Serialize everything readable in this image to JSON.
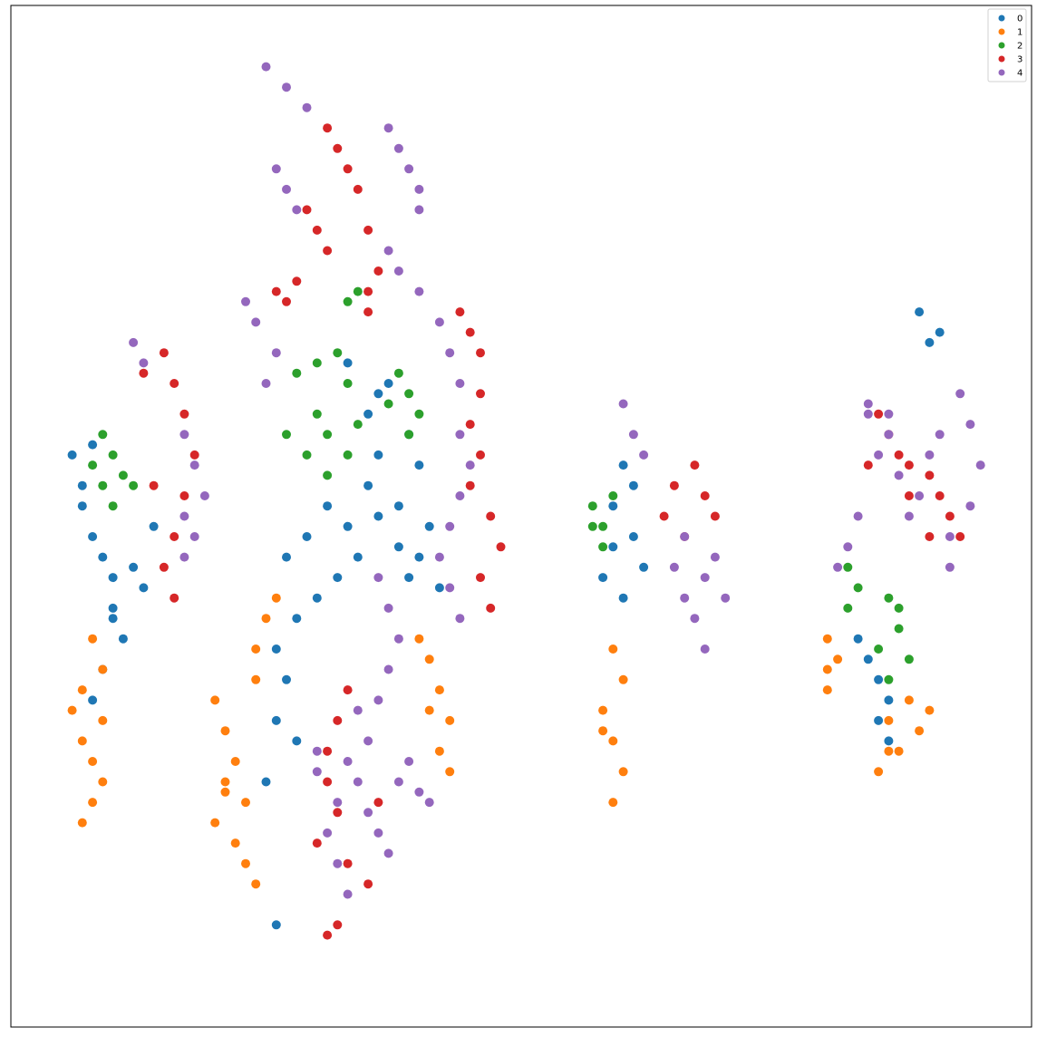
{
  "chart_data": {
    "type": "scatter",
    "title": "",
    "xlabel": "",
    "ylabel": "",
    "axes_visible": false,
    "ticks_visible": false,
    "grid": false,
    "legend_position": "top-right",
    "xlim": [
      0,
      100
    ],
    "ylim": [
      0,
      100
    ],
    "series": [
      {
        "name": "0",
        "color": "#1f77b4",
        "points": [
          [
            6,
            56
          ],
          [
            7,
            51
          ],
          [
            8,
            48
          ],
          [
            9,
            46
          ],
          [
            10,
            44
          ],
          [
            10,
            41
          ],
          [
            11,
            38
          ],
          [
            9,
            35
          ],
          [
            8,
            32
          ],
          [
            12,
            45
          ],
          [
            10,
            40
          ],
          [
            14,
            49
          ],
          [
            13,
            43
          ],
          [
            7,
            53
          ],
          [
            8,
            57
          ],
          [
            27,
            46
          ],
          [
            29,
            48
          ],
          [
            31,
            51
          ],
          [
            33,
            49
          ],
          [
            35,
            53
          ],
          [
            36,
            56
          ],
          [
            35,
            60
          ],
          [
            37,
            63
          ],
          [
            39,
            58
          ],
          [
            40,
            55
          ],
          [
            38,
            51
          ],
          [
            41,
            49
          ],
          [
            40,
            46
          ],
          [
            39,
            44
          ],
          [
            38,
            47
          ],
          [
            36,
            50
          ],
          [
            34,
            46
          ],
          [
            32,
            44
          ],
          [
            30,
            42
          ],
          [
            28,
            40
          ],
          [
            26,
            37
          ],
          [
            27,
            34
          ],
          [
            26,
            30
          ],
          [
            28,
            28
          ],
          [
            25,
            24
          ],
          [
            26,
            10
          ],
          [
            33,
            65
          ],
          [
            36,
            62
          ],
          [
            42,
            43
          ],
          [
            60,
            55
          ],
          [
            59,
            51
          ],
          [
            61,
            48
          ],
          [
            62,
            45
          ],
          [
            60,
            42
          ],
          [
            58,
            44
          ],
          [
            59,
            47
          ],
          [
            61,
            53
          ],
          [
            89,
            70
          ],
          [
            90,
            67
          ],
          [
            91,
            68
          ],
          [
            83,
            38
          ],
          [
            84,
            36
          ],
          [
            85,
            34
          ],
          [
            86,
            32
          ],
          [
            85,
            30
          ],
          [
            86,
            28
          ]
        ]
      },
      {
        "name": "1",
        "color": "#ff7f0e",
        "points": [
          [
            8,
            38
          ],
          [
            9,
            35
          ],
          [
            7,
            33
          ],
          [
            6,
            31
          ],
          [
            7,
            28
          ],
          [
            8,
            26
          ],
          [
            9,
            24
          ],
          [
            8,
            22
          ],
          [
            7,
            20
          ],
          [
            9,
            30
          ],
          [
            20,
            32
          ],
          [
            21,
            29
          ],
          [
            22,
            26
          ],
          [
            21,
            23
          ],
          [
            20,
            20
          ],
          [
            22,
            18
          ],
          [
            23,
            16
          ],
          [
            24,
            14
          ],
          [
            21,
            24
          ],
          [
            23,
            22
          ],
          [
            24,
            37
          ],
          [
            25,
            40
          ],
          [
            26,
            42
          ],
          [
            24,
            34
          ],
          [
            40,
            38
          ],
          [
            41,
            36
          ],
          [
            42,
            33
          ],
          [
            43,
            30
          ],
          [
            42,
            27
          ],
          [
            43,
            25
          ],
          [
            41,
            31
          ],
          [
            59,
            37
          ],
          [
            60,
            34
          ],
          [
            58,
            31
          ],
          [
            59,
            28
          ],
          [
            60,
            25
          ],
          [
            59,
            22
          ],
          [
            58,
            29
          ],
          [
            80,
            38
          ],
          [
            81,
            36
          ],
          [
            80,
            35
          ],
          [
            80,
            33
          ],
          [
            86,
            30
          ],
          [
            88,
            32
          ],
          [
            89,
            29
          ],
          [
            86,
            27
          ],
          [
            85,
            25
          ],
          [
            87,
            27
          ],
          [
            90,
            31
          ]
        ]
      },
      {
        "name": "2",
        "color": "#2ca02c",
        "points": [
          [
            9,
            58
          ],
          [
            10,
            56
          ],
          [
            11,
            54
          ],
          [
            8,
            55
          ],
          [
            9,
            53
          ],
          [
            10,
            51
          ],
          [
            12,
            53
          ],
          [
            28,
            64
          ],
          [
            30,
            65
          ],
          [
            32,
            66
          ],
          [
            33,
            63
          ],
          [
            30,
            60
          ],
          [
            31,
            58
          ],
          [
            29,
            56
          ],
          [
            31,
            54
          ],
          [
            33,
            56
          ],
          [
            34,
            59
          ],
          [
            27,
            58
          ],
          [
            38,
            64
          ],
          [
            39,
            62
          ],
          [
            40,
            60
          ],
          [
            37,
            61
          ],
          [
            39,
            58
          ],
          [
            33,
            71
          ],
          [
            34,
            72
          ],
          [
            57,
            51
          ],
          [
            58,
            49
          ],
          [
            59,
            52
          ],
          [
            58,
            47
          ],
          [
            57,
            49
          ],
          [
            82,
            45
          ],
          [
            83,
            43
          ],
          [
            82,
            41
          ],
          [
            86,
            42
          ],
          [
            87,
            39
          ],
          [
            85,
            37
          ],
          [
            88,
            36
          ],
          [
            86,
            34
          ],
          [
            87,
            41
          ]
        ]
      },
      {
        "name": "3",
        "color": "#d62728",
        "points": [
          [
            13,
            64
          ],
          [
            15,
            66
          ],
          [
            16,
            63
          ],
          [
            17,
            60
          ],
          [
            18,
            56
          ],
          [
            17,
            52
          ],
          [
            16,
            48
          ],
          [
            15,
            45
          ],
          [
            16,
            42
          ],
          [
            14,
            53
          ],
          [
            31,
            88
          ],
          [
            32,
            86
          ],
          [
            33,
            84
          ],
          [
            34,
            82
          ],
          [
            29,
            80
          ],
          [
            30,
            78
          ],
          [
            31,
            76
          ],
          [
            26,
            72
          ],
          [
            27,
            71
          ],
          [
            28,
            73
          ],
          [
            35,
            78
          ],
          [
            36,
            74
          ],
          [
            35,
            72
          ],
          [
            35,
            70
          ],
          [
            44,
            70
          ],
          [
            45,
            68
          ],
          [
            46,
            66
          ],
          [
            46,
            62
          ],
          [
            45,
            59
          ],
          [
            46,
            56
          ],
          [
            45,
            53
          ],
          [
            47,
            50
          ],
          [
            48,
            47
          ],
          [
            46,
            44
          ],
          [
            47,
            41
          ],
          [
            33,
            33
          ],
          [
            32,
            30
          ],
          [
            31,
            27
          ],
          [
            31,
            24
          ],
          [
            32,
            21
          ],
          [
            30,
            18
          ],
          [
            33,
            16
          ],
          [
            32,
            10
          ],
          [
            31,
            9
          ],
          [
            36,
            22
          ],
          [
            35,
            14
          ],
          [
            65,
            53
          ],
          [
            67,
            55
          ],
          [
            68,
            52
          ],
          [
            69,
            50
          ],
          [
            66,
            48
          ],
          [
            64,
            50
          ],
          [
            85,
            60
          ],
          [
            86,
            58
          ],
          [
            87,
            56
          ],
          [
            88,
            55
          ],
          [
            90,
            54
          ],
          [
            91,
            52
          ],
          [
            92,
            50
          ],
          [
            90,
            48
          ],
          [
            84,
            55
          ],
          [
            93,
            48
          ],
          [
            88,
            52
          ]
        ]
      },
      {
        "name": "4",
        "color": "#9467bd",
        "points": [
          [
            25,
            94
          ],
          [
            27,
            92
          ],
          [
            29,
            90
          ],
          [
            37,
            88
          ],
          [
            38,
            86
          ],
          [
            39,
            84
          ],
          [
            40,
            82
          ],
          [
            40,
            80
          ],
          [
            26,
            84
          ],
          [
            27,
            82
          ],
          [
            28,
            80
          ],
          [
            23,
            71
          ],
          [
            24,
            69
          ],
          [
            25,
            63
          ],
          [
            26,
            66
          ],
          [
            17,
            58
          ],
          [
            18,
            55
          ],
          [
            17,
            50
          ],
          [
            19,
            52
          ],
          [
            17,
            46
          ],
          [
            18,
            48
          ],
          [
            12,
            67
          ],
          [
            13,
            65
          ],
          [
            37,
            76
          ],
          [
            38,
            74
          ],
          [
            40,
            72
          ],
          [
            42,
            69
          ],
          [
            43,
            66
          ],
          [
            44,
            63
          ],
          [
            44,
            58
          ],
          [
            45,
            55
          ],
          [
            44,
            52
          ],
          [
            43,
            49
          ],
          [
            42,
            46
          ],
          [
            43,
            43
          ],
          [
            44,
            40
          ],
          [
            36,
            44
          ],
          [
            37,
            41
          ],
          [
            38,
            38
          ],
          [
            37,
            35
          ],
          [
            36,
            32
          ],
          [
            34,
            31
          ],
          [
            35,
            28
          ],
          [
            33,
            26
          ],
          [
            34,
            24
          ],
          [
            32,
            22
          ],
          [
            31,
            19
          ],
          [
            32,
            16
          ],
          [
            33,
            13
          ],
          [
            35,
            21
          ],
          [
            36,
            19
          ],
          [
            37,
            17
          ],
          [
            38,
            24
          ],
          [
            39,
            26
          ],
          [
            40,
            23
          ],
          [
            41,
            22
          ],
          [
            30,
            27
          ],
          [
            30,
            25
          ],
          [
            60,
            61
          ],
          [
            61,
            58
          ],
          [
            62,
            56
          ],
          [
            66,
            48
          ],
          [
            65,
            45
          ],
          [
            66,
            42
          ],
          [
            67,
            40
          ],
          [
            68,
            44
          ],
          [
            69,
            46
          ],
          [
            70,
            42
          ],
          [
            68,
            37
          ],
          [
            84,
            60
          ],
          [
            85,
            56
          ],
          [
            86,
            58
          ],
          [
            87,
            54
          ],
          [
            88,
            50
          ],
          [
            89,
            52
          ],
          [
            90,
            56
          ],
          [
            91,
            58
          ],
          [
            93,
            62
          ],
          [
            94,
            59
          ],
          [
            95,
            55
          ],
          [
            94,
            51
          ],
          [
            92,
            48
          ],
          [
            92,
            45
          ],
          [
            83,
            50
          ],
          [
            82,
            47
          ],
          [
            81,
            45
          ],
          [
            84,
            61
          ],
          [
            86,
            60
          ]
        ]
      }
    ]
  }
}
